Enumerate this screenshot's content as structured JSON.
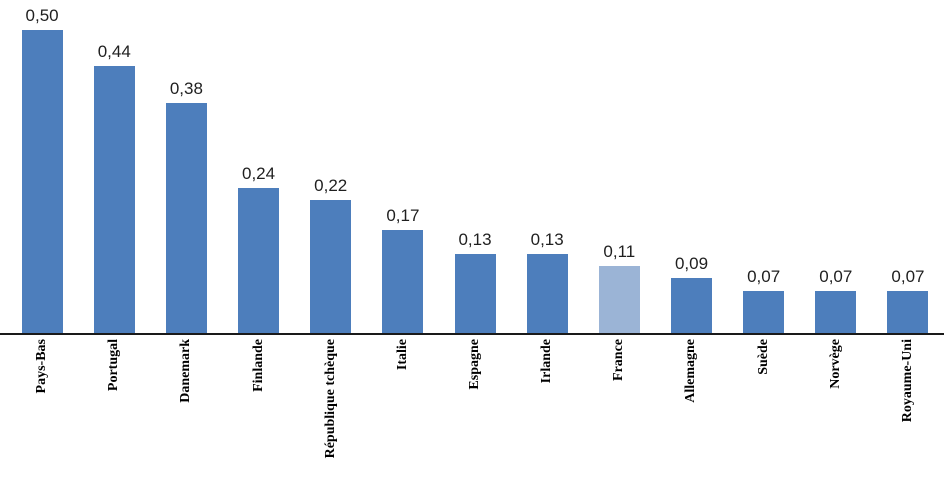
{
  "chart_data": {
    "type": "bar",
    "title": "",
    "xlabel": "",
    "ylabel": "",
    "categories": [
      "Pays-Bas",
      "Portugal",
      "Danemark",
      "Finlande",
      "République tchèque",
      "Italie",
      "Espagne",
      "Irlande",
      "France",
      "Allemagne",
      "Suède",
      "Norvège",
      "Royaume-Uni"
    ],
    "values": [
      0.5,
      0.44,
      0.38,
      0.24,
      0.22,
      0.17,
      0.13,
      0.13,
      0.11,
      0.09,
      0.07,
      0.07,
      0.07
    ],
    "value_labels": [
      "0,50",
      "0,44",
      "0,38",
      "0,24",
      "0,22",
      "0,17",
      "0,13",
      "0,13",
      "0,11",
      "0,09",
      "0,07",
      "0,07",
      "0,07"
    ],
    "decimal_separator": ",",
    "highlight": {
      "index": 8,
      "category": "France"
    },
    "colors": {
      "bar": "#4d7ebc",
      "highlight_bar": "#9bb4d6",
      "axis": "#1a1a1a",
      "value_label": "#1f1f1f",
      "category_label": "#000000"
    },
    "ylim": [
      0,
      0.55
    ],
    "grid": "off",
    "legend": "none",
    "value_label_position": "above-bar",
    "category_label_rotation": "vertical-bottom-to-top"
  }
}
